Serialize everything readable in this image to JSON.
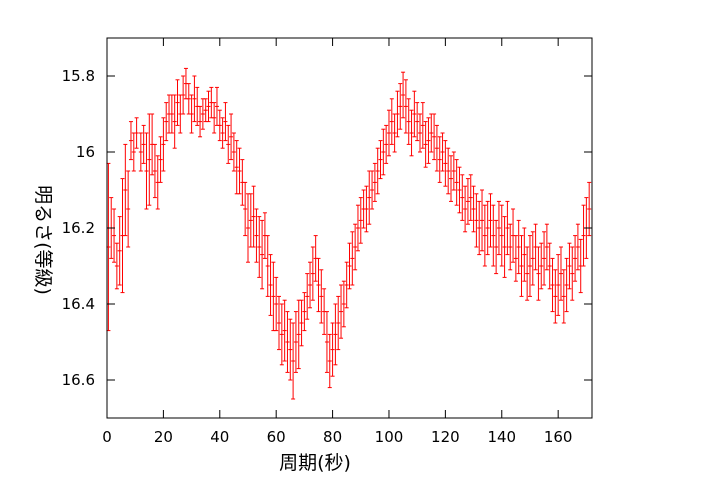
{
  "chart_data": {
    "type": "scatter",
    "title": "",
    "xlabel": "周期(秒)",
    "ylabel": "明るさ(等級)",
    "xlim": [
      0,
      172
    ],
    "ylim": [
      16.7,
      15.7
    ],
    "y_inverted": true,
    "grid": false,
    "legend": "none",
    "x_ticks": [
      0,
      20,
      40,
      60,
      80,
      100,
      120,
      140,
      160
    ],
    "y_ticks": [
      15.8,
      16.0,
      16.2,
      16.4,
      16.6
    ],
    "x_tick_labels": [
      "0",
      "20",
      "40",
      "60",
      "80",
      "100",
      "120",
      "140",
      "160"
    ],
    "y_tick_labels": [
      "15.8",
      "16",
      "16.2",
      "16.4",
      "16.6"
    ],
    "series": [
      {
        "color": "#ff0000",
        "marker": "errorbar",
        "points": [
          [
            0.5,
            16.25,
            0.22
          ],
          [
            1.5,
            16.2,
            0.08
          ],
          [
            2.5,
            16.22,
            0.07
          ],
          [
            3.5,
            16.3,
            0.06
          ],
          [
            4.5,
            16.26,
            0.09
          ],
          [
            5.5,
            16.22,
            0.15
          ],
          [
            6.5,
            16.1,
            0.12
          ],
          [
            7.5,
            16.15,
            0.1
          ],
          [
            8.5,
            15.97,
            0.05
          ],
          [
            9.5,
            16.0,
            0.05
          ],
          [
            10.5,
            15.95,
            0.04
          ],
          [
            12,
            16.0,
            0.05
          ],
          [
            13,
            15.98,
            0.05
          ],
          [
            14,
            16.05,
            0.1
          ],
          [
            15,
            16.02,
            0.12
          ],
          [
            16,
            15.98,
            0.08
          ],
          [
            17,
            16.05,
            0.07
          ],
          [
            18,
            16.08,
            0.07
          ],
          [
            19,
            16.02,
            0.06
          ],
          [
            20,
            15.98,
            0.07
          ],
          [
            21,
            15.92,
            0.05
          ],
          [
            22,
            15.9,
            0.05
          ],
          [
            23,
            15.9,
            0.05
          ],
          [
            24,
            15.92,
            0.07
          ],
          [
            25,
            15.87,
            0.06
          ],
          [
            26,
            15.9,
            0.05
          ],
          [
            27,
            15.85,
            0.05
          ],
          [
            28,
            15.82,
            0.04
          ],
          [
            29,
            15.86,
            0.04
          ],
          [
            30,
            15.9,
            0.05
          ],
          [
            31,
            15.86,
            0.06
          ],
          [
            32,
            15.88,
            0.05
          ],
          [
            33,
            15.92,
            0.04
          ],
          [
            34,
            15.9,
            0.04
          ],
          [
            35,
            15.89,
            0.03
          ],
          [
            36,
            15.88,
            0.04
          ],
          [
            37,
            15.87,
            0.04
          ],
          [
            38,
            15.91,
            0.04
          ],
          [
            39,
            15.88,
            0.05
          ],
          [
            40,
            15.93,
            0.04
          ],
          [
            41,
            15.95,
            0.04
          ],
          [
            42,
            15.92,
            0.05
          ],
          [
            43,
            15.98,
            0.05
          ],
          [
            44,
            15.96,
            0.06
          ],
          [
            45,
            16.0,
            0.05
          ],
          [
            46,
            16.04,
            0.07
          ],
          [
            47,
            16.05,
            0.06
          ],
          [
            48,
            16.08,
            0.06
          ],
          [
            49,
            16.15,
            0.07
          ],
          [
            50,
            16.2,
            0.09
          ],
          [
            51,
            16.18,
            0.07
          ],
          [
            52,
            16.17,
            0.08
          ],
          [
            53,
            16.22,
            0.07
          ],
          [
            54,
            16.25,
            0.08
          ],
          [
            55,
            16.27,
            0.09
          ],
          [
            56,
            16.22,
            0.06
          ],
          [
            57,
            16.3,
            0.08
          ],
          [
            58,
            16.35,
            0.08
          ],
          [
            59,
            16.38,
            0.09
          ],
          [
            60,
            16.4,
            0.07
          ],
          [
            61,
            16.45,
            0.07
          ],
          [
            62,
            16.48,
            0.08
          ],
          [
            63,
            16.47,
            0.08
          ],
          [
            64,
            16.5,
            0.08
          ],
          [
            65,
            16.52,
            0.08
          ],
          [
            66,
            16.55,
            0.1
          ],
          [
            67,
            16.5,
            0.08
          ],
          [
            68,
            16.48,
            0.09
          ],
          [
            69,
            16.45,
            0.06
          ],
          [
            70,
            16.42,
            0.05
          ],
          [
            71,
            16.38,
            0.06
          ],
          [
            72,
            16.35,
            0.06
          ],
          [
            73,
            16.32,
            0.07
          ],
          [
            74,
            16.28,
            0.06
          ],
          [
            75,
            16.35,
            0.07
          ],
          [
            76,
            16.38,
            0.07
          ],
          [
            77,
            16.42,
            0.06
          ],
          [
            78,
            16.5,
            0.08
          ],
          [
            79,
            16.55,
            0.07
          ],
          [
            80,
            16.52,
            0.07
          ],
          [
            81,
            16.48,
            0.08
          ],
          [
            82,
            16.45,
            0.07
          ],
          [
            83,
            16.42,
            0.07
          ],
          [
            84,
            16.4,
            0.06
          ],
          [
            85,
            16.35,
            0.06
          ],
          [
            86,
            16.3,
            0.06
          ],
          [
            87,
            16.28,
            0.07
          ],
          [
            88,
            16.25,
            0.06
          ],
          [
            89,
            16.2,
            0.06
          ],
          [
            90,
            16.18,
            0.06
          ],
          [
            91,
            16.15,
            0.05
          ],
          [
            92,
            16.15,
            0.06
          ],
          [
            93,
            16.12,
            0.07
          ],
          [
            94,
            16.1,
            0.05
          ],
          [
            95,
            16.08,
            0.05
          ],
          [
            96,
            16.05,
            0.06
          ],
          [
            97,
            16.02,
            0.05
          ],
          [
            98,
            16.0,
            0.06
          ],
          [
            99,
            15.98,
            0.05
          ],
          [
            100,
            15.95,
            0.06
          ],
          [
            101,
            15.92,
            0.06
          ],
          [
            102,
            15.95,
            0.05
          ],
          [
            103,
            15.9,
            0.06
          ],
          [
            104,
            15.88,
            0.06
          ],
          [
            105,
            15.85,
            0.06
          ],
          [
            106,
            15.88,
            0.07
          ],
          [
            107,
            15.92,
            0.06
          ],
          [
            108,
            15.95,
            0.06
          ],
          [
            109,
            15.9,
            0.06
          ],
          [
            110,
            15.92,
            0.05
          ],
          [
            111,
            15.95,
            0.05
          ],
          [
            112,
            15.93,
            0.06
          ],
          [
            113,
            15.98,
            0.06
          ],
          [
            114,
            15.97,
            0.06
          ],
          [
            115,
            15.95,
            0.05
          ],
          [
            116,
            15.96,
            0.06
          ],
          [
            117,
            15.99,
            0.06
          ],
          [
            118,
            16.02,
            0.06
          ],
          [
            119,
            16.0,
            0.05
          ],
          [
            120,
            16.03,
            0.06
          ],
          [
            121,
            16.05,
            0.06
          ],
          [
            122,
            16.07,
            0.06
          ],
          [
            123,
            16.05,
            0.05
          ],
          [
            124,
            16.08,
            0.06
          ],
          [
            125,
            16.1,
            0.06
          ],
          [
            126,
            16.12,
            0.06
          ],
          [
            127,
            16.15,
            0.06
          ],
          [
            128,
            16.13,
            0.06
          ],
          [
            129,
            16.12,
            0.06
          ],
          [
            130,
            16.15,
            0.06
          ],
          [
            131,
            16.18,
            0.07
          ],
          [
            132,
            16.2,
            0.07
          ],
          [
            133,
            16.18,
            0.08
          ],
          [
            134,
            16.22,
            0.08
          ],
          [
            135,
            16.2,
            0.07
          ],
          [
            136,
            16.18,
            0.07
          ],
          [
            137,
            16.22,
            0.08
          ],
          [
            138,
            16.25,
            0.07
          ],
          [
            139,
            16.2,
            0.07
          ],
          [
            140,
            16.22,
            0.08
          ],
          [
            141,
            16.25,
            0.08
          ],
          [
            142,
            16.2,
            0.07
          ],
          [
            143,
            16.25,
            0.06
          ],
          [
            144,
            16.22,
            0.07
          ],
          [
            145,
            16.28,
            0.06
          ],
          [
            146,
            16.25,
            0.07
          ],
          [
            147,
            16.3,
            0.08
          ],
          [
            148,
            16.27,
            0.07
          ],
          [
            149,
            16.32,
            0.07
          ],
          [
            150,
            16.3,
            0.08
          ],
          [
            151,
            16.28,
            0.07
          ],
          [
            152,
            16.25,
            0.06
          ],
          [
            153,
            16.32,
            0.07
          ],
          [
            154,
            16.3,
            0.06
          ],
          [
            155,
            16.28,
            0.07
          ],
          [
            156,
            16.25,
            0.06
          ],
          [
            157,
            16.3,
            0.06
          ],
          [
            158,
            16.35,
            0.07
          ],
          [
            159,
            16.38,
            0.07
          ],
          [
            160,
            16.35,
            0.08
          ],
          [
            161,
            16.32,
            0.07
          ],
          [
            162,
            16.38,
            0.07
          ],
          [
            163,
            16.35,
            0.07
          ],
          [
            164,
            16.3,
            0.06
          ],
          [
            165,
            16.32,
            0.07
          ],
          [
            166,
            16.28,
            0.06
          ],
          [
            167,
            16.25,
            0.06
          ],
          [
            168,
            16.3,
            0.07
          ],
          [
            169,
            16.22,
            0.08
          ],
          [
            170,
            16.2,
            0.08
          ],
          [
            171,
            16.15,
            0.07
          ]
        ]
      }
    ]
  }
}
